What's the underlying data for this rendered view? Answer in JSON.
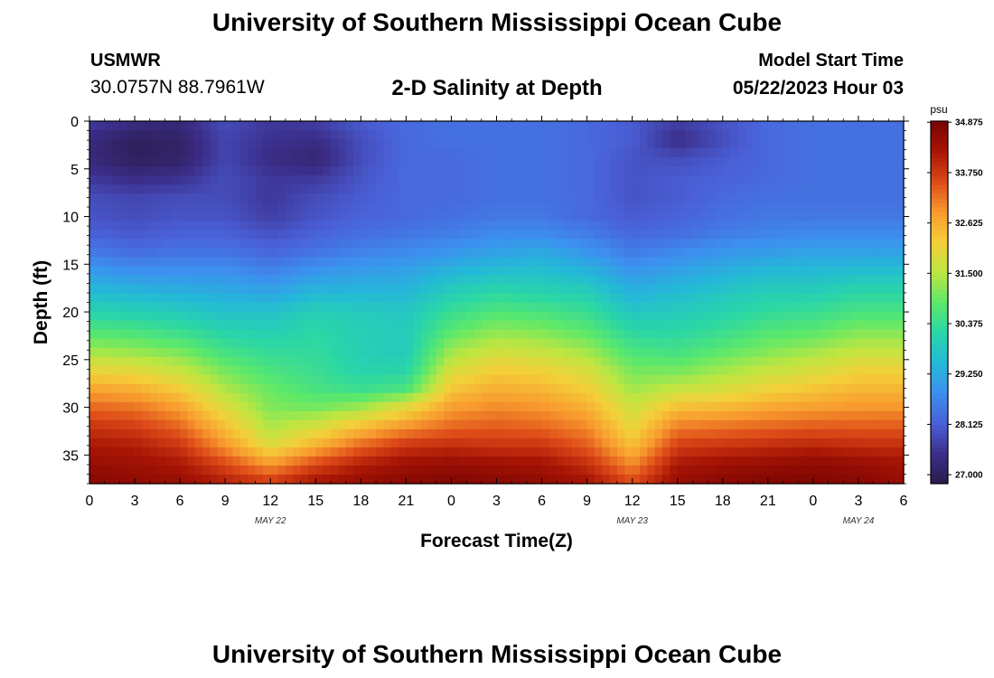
{
  "header": {
    "title": "University of Southern Mississippi Ocean Cube",
    "station_name": "USMWR",
    "station_coords": "30.0757N  88.7961W",
    "subtitle": "2-D Salinity at Depth",
    "model_start_label": "Model Start Time",
    "model_start_time": "05/22/2023 Hour 03"
  },
  "footer": {
    "title": "University of Southern Mississippi Ocean Cube"
  },
  "colors": {
    "colormap": [
      "#2a1a4a",
      "#3c2f8c",
      "#4a5fd6",
      "#3d8ff0",
      "#24b8d8",
      "#29d6a8",
      "#5ce86a",
      "#bde641",
      "#f4cf3a",
      "#f89a2e",
      "#dd4a18",
      "#a81505",
      "#7a0403"
    ]
  },
  "chart_data": {
    "type": "heatmap",
    "title": "2-D Salinity at Depth",
    "xlabel": "Forecast Time(Z)",
    "ylabel": "Depth (ft)",
    "x_tick_labels": [
      "0",
      "3",
      "6",
      "9",
      "12",
      "15",
      "18",
      "21",
      "0",
      "3",
      "6",
      "9",
      "12",
      "15",
      "18",
      "21",
      "0",
      "3",
      "6"
    ],
    "date_labels": [
      {
        "label": "MAY 22",
        "hour": 12
      },
      {
        "label": "MAY 23",
        "hour": 36
      },
      {
        "label": "MAY 24",
        "hour": 51
      }
    ],
    "x_hours": [
      0,
      3,
      6,
      9,
      12,
      15,
      18,
      21,
      24,
      27,
      30,
      33,
      36,
      39,
      42,
      45,
      48,
      51,
      54
    ],
    "xlim": [
      0,
      54
    ],
    "ylim": [
      0,
      38
    ],
    "y_reversed": true,
    "y_ticks": [
      0,
      5,
      10,
      15,
      20,
      25,
      30,
      35
    ],
    "depths": [
      0,
      2,
      4,
      6,
      8,
      10,
      12,
      14,
      16,
      18,
      20,
      22,
      24,
      26,
      28,
      30,
      32,
      34,
      36,
      38
    ],
    "colorbar": {
      "unit": "psu",
      "min": 26.8,
      "max": 34.9,
      "tick_values": [
        27.0,
        28.125,
        29.25,
        30.375,
        31.5,
        32.625,
        33.75,
        34.875
      ],
      "tick_labels": [
        "27.000",
        "28.125",
        "29.250",
        "30.375",
        "31.500",
        "32.625",
        "33.750",
        "34.875"
      ]
    },
    "values": [
      [
        27.7,
        27.4,
        27.3,
        27.9,
        27.6,
        27.7,
        28.1,
        28.3,
        28.4,
        28.4,
        28.4,
        28.3,
        28.1,
        27.7,
        28.0,
        28.3,
        28.4,
        28.4,
        28.4
      ],
      [
        27.3,
        27.0,
        27.1,
        27.8,
        27.5,
        27.4,
        27.9,
        28.3,
        28.4,
        28.4,
        28.4,
        28.3,
        28.1,
        27.4,
        27.9,
        28.3,
        28.4,
        28.4,
        28.4
      ],
      [
        27.3,
        27.0,
        27.1,
        27.8,
        27.4,
        27.2,
        27.9,
        28.3,
        28.3,
        28.4,
        28.4,
        28.3,
        28.0,
        27.9,
        28.1,
        28.3,
        28.4,
        28.4,
        28.4
      ],
      [
        27.6,
        27.4,
        27.5,
        27.9,
        27.6,
        27.6,
        28.0,
        28.3,
        28.3,
        28.4,
        28.4,
        28.3,
        28.0,
        28.1,
        28.2,
        28.3,
        28.4,
        28.4,
        28.4
      ],
      [
        27.9,
        27.8,
        27.9,
        27.9,
        27.6,
        27.9,
        28.1,
        28.3,
        28.3,
        28.4,
        28.4,
        28.3,
        28.0,
        28.1,
        28.3,
        28.4,
        28.4,
        28.4,
        28.4
      ],
      [
        28.0,
        27.9,
        28.0,
        28.0,
        27.7,
        28.0,
        28.2,
        28.3,
        28.4,
        28.5,
        28.5,
        28.3,
        28.1,
        28.2,
        28.4,
        28.5,
        28.5,
        28.5,
        28.5
      ],
      [
        28.2,
        28.1,
        28.2,
        28.2,
        28.0,
        28.2,
        28.4,
        28.5,
        28.6,
        28.8,
        28.8,
        28.6,
        28.3,
        28.4,
        28.6,
        28.7,
        28.8,
        28.8,
        28.8
      ],
      [
        28.6,
        28.4,
        28.5,
        28.5,
        28.3,
        28.5,
        28.7,
        28.8,
        29.0,
        29.2,
        29.3,
        29.0,
        28.6,
        28.8,
        29.0,
        29.1,
        29.2,
        29.2,
        29.2
      ],
      [
        29.1,
        28.9,
        28.9,
        28.9,
        28.7,
        29.0,
        29.1,
        29.2,
        29.5,
        29.7,
        29.7,
        29.5,
        29.0,
        29.2,
        29.4,
        29.6,
        29.6,
        29.7,
        29.7
      ],
      [
        29.6,
        29.5,
        29.4,
        29.3,
        29.2,
        29.5,
        29.5,
        29.5,
        30.0,
        30.2,
        30.1,
        30.0,
        29.4,
        29.6,
        29.8,
        30.0,
        30.0,
        30.2,
        30.2
      ],
      [
        30.1,
        30.0,
        29.9,
        29.7,
        29.7,
        30.0,
        29.9,
        29.8,
        30.4,
        30.7,
        30.6,
        30.4,
        29.8,
        29.9,
        30.1,
        30.3,
        30.4,
        30.6,
        30.6
      ],
      [
        30.7,
        30.6,
        30.4,
        30.1,
        30.0,
        30.2,
        30.0,
        29.9,
        30.8,
        31.2,
        31.1,
        30.8,
        30.2,
        30.2,
        30.4,
        30.7,
        30.8,
        31.1,
        31.1
      ],
      [
        31.3,
        31.2,
        31.0,
        30.5,
        30.3,
        30.3,
        30.0,
        29.9,
        31.3,
        31.7,
        31.6,
        31.3,
        30.6,
        30.5,
        30.8,
        31.1,
        31.3,
        31.6,
        31.6
      ],
      [
        32.0,
        31.9,
        31.6,
        31.0,
        30.6,
        30.4,
        30.1,
        30.1,
        31.8,
        32.2,
        32.1,
        31.8,
        31.0,
        31.0,
        31.3,
        31.6,
        31.8,
        32.1,
        32.1
      ],
      [
        32.7,
        32.6,
        32.2,
        31.4,
        30.9,
        30.6,
        30.4,
        30.6,
        32.3,
        32.6,
        32.5,
        32.2,
        31.3,
        31.6,
        31.8,
        32.1,
        32.3,
        32.5,
        32.5
      ],
      [
        33.3,
        33.2,
        32.8,
        31.9,
        31.1,
        31.0,
        31.3,
        32.0,
        32.8,
        33.0,
        32.9,
        32.6,
        31.7,
        32.4,
        32.5,
        32.7,
        32.8,
        32.9,
        32.9
      ],
      [
        33.8,
        33.7,
        33.3,
        32.4,
        31.4,
        31.8,
        32.4,
        32.9,
        33.3,
        33.4,
        33.3,
        33.0,
        32.0,
        33.1,
        33.2,
        33.3,
        33.4,
        33.4,
        33.4
      ],
      [
        34.2,
        34.1,
        33.8,
        32.9,
        31.9,
        32.6,
        33.3,
        33.8,
        33.9,
        33.8,
        33.8,
        33.4,
        32.4,
        33.7,
        33.8,
        33.9,
        34.0,
        33.9,
        33.9
      ],
      [
        34.5,
        34.4,
        34.2,
        33.6,
        32.9,
        33.6,
        34.1,
        34.4,
        34.5,
        34.4,
        34.3,
        33.9,
        33.0,
        34.2,
        34.4,
        34.5,
        34.6,
        34.5,
        34.3
      ],
      [
        34.7,
        34.6,
        34.5,
        34.1,
        33.8,
        34.3,
        34.5,
        34.7,
        34.8,
        34.7,
        34.6,
        34.3,
        33.6,
        34.5,
        34.7,
        34.8,
        34.8,
        34.7,
        34.5
      ]
    ]
  }
}
